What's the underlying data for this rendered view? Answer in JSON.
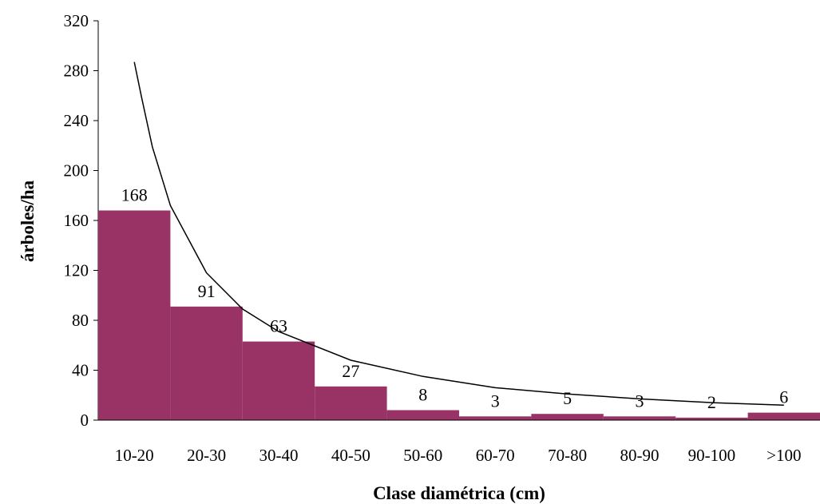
{
  "chart_data": {
    "type": "bar",
    "xlabel": "Clase diamétrica (cm)",
    "ylabel": "árboles/ha",
    "ylim": [
      0,
      320
    ],
    "yticks": [
      0,
      40,
      80,
      120,
      160,
      200,
      240,
      280,
      320
    ],
    "grid": false,
    "legend": "none",
    "categories": [
      "10-20",
      "20-30",
      "30-40",
      "40-50",
      "50-60",
      "60-70",
      "70-80",
      "80-90",
      "90-100",
      ">100"
    ],
    "values": [
      168,
      91,
      63,
      27,
      8,
      3,
      5,
      3,
      2,
      6
    ],
    "data_labels": [
      "168",
      "91",
      "63",
      "27",
      "8",
      "3",
      "5",
      "3",
      "2",
      "6"
    ],
    "bar_color": "#993366",
    "trendline": {
      "type": "power",
      "x": [
        1.0,
        1.1,
        1.25,
        1.5,
        2,
        2.5,
        3,
        4,
        5,
        6,
        7,
        8,
        9,
        10
      ],
      "y": [
        287,
        259,
        219,
        172,
        118,
        89,
        71,
        48,
        35,
        26,
        21,
        17,
        14,
        12
      ]
    }
  }
}
